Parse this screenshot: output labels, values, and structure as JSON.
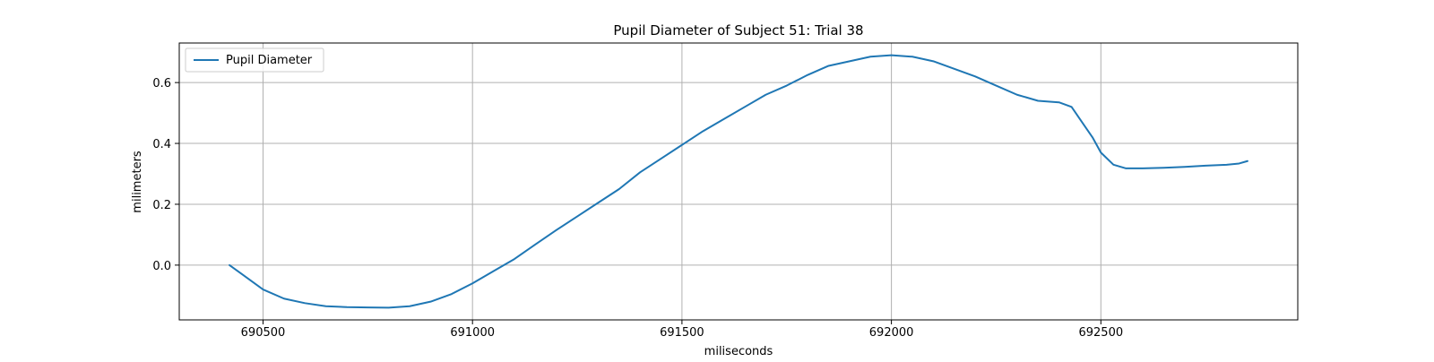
{
  "chart_data": {
    "type": "line",
    "title": "Pupil Diameter of Subject 51: Trial 38",
    "xlabel": "miliseconds",
    "ylabel": "milimeters",
    "xlim": [
      690300,
      692970
    ],
    "ylim": [
      -0.18,
      0.73
    ],
    "xticks": [
      690500,
      691000,
      691500,
      692000,
      692500
    ],
    "yticks": [
      0.0,
      0.2,
      0.4,
      0.6
    ],
    "xtick_labels": [
      "690500",
      "691000",
      "691500",
      "692000",
      "692500"
    ],
    "ytick_labels": [
      "0.0",
      "0.2",
      "0.4",
      "0.6"
    ],
    "grid": true,
    "legend": {
      "position": "upper-left",
      "entries": [
        "Pupil Diameter"
      ]
    },
    "series": [
      {
        "name": "Pupil Diameter",
        "color": "#1f77b4",
        "x": [
          690420,
          690450,
          690500,
          690550,
          690600,
          690650,
          690700,
          690750,
          690800,
          690850,
          690900,
          690950,
          691000,
          691050,
          691100,
          691150,
          691200,
          691250,
          691300,
          691350,
          691400,
          691450,
          691500,
          691550,
          691600,
          691650,
          691700,
          691750,
          691800,
          691850,
          691900,
          691950,
          692000,
          692050,
          692100,
          692150,
          692200,
          692250,
          692300,
          692350,
          692400,
          692430,
          692450,
          692480,
          692500,
          692530,
          692560,
          692600,
          692650,
          692700,
          692750,
          692800,
          692830,
          692850
        ],
        "y": [
          0.0,
          -0.03,
          -0.08,
          -0.11,
          -0.125,
          -0.135,
          -0.138,
          -0.139,
          -0.14,
          -0.135,
          -0.12,
          -0.095,
          -0.06,
          -0.02,
          0.02,
          0.068,
          0.115,
          0.16,
          0.205,
          0.25,
          0.305,
          0.35,
          0.395,
          0.44,
          0.48,
          0.52,
          0.56,
          0.59,
          0.625,
          0.655,
          0.67,
          0.685,
          0.69,
          0.685,
          0.67,
          0.645,
          0.62,
          0.59,
          0.56,
          0.54,
          0.535,
          0.52,
          0.48,
          0.42,
          0.37,
          0.33,
          0.318,
          0.318,
          0.32,
          0.323,
          0.327,
          0.33,
          0.334,
          0.342
        ]
      }
    ]
  }
}
